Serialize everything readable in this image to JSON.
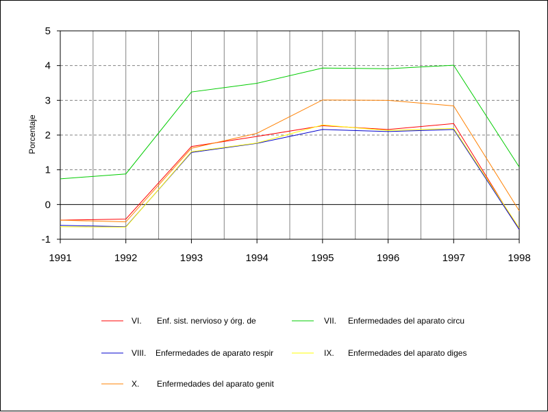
{
  "chart_data": {
    "type": "line",
    "title": "",
    "xlabel": "",
    "ylabel": "Porcentaje",
    "x": [
      "1991",
      "1992",
      "1993",
      "1994",
      "1995",
      "1996",
      "1997",
      "1998"
    ],
    "yticks": [
      "5",
      "4",
      "3",
      "2",
      "1",
      "0",
      "-1"
    ],
    "ylim": [
      -1,
      5
    ],
    "grid": true,
    "legend_position": "bottom",
    "series": [
      {
        "name": "Enf. sist. nervioso y órg. de",
        "code": "VI.",
        "color": "#ff0000",
        "values": [
          -0.45,
          -0.42,
          1.67,
          1.96,
          2.27,
          2.16,
          2.33,
          -0.72
        ]
      },
      {
        "name": "Enfermedades del aparato circu",
        "code": "VII.",
        "color": "#00cc00",
        "values": [
          0.74,
          0.88,
          3.24,
          3.49,
          3.93,
          3.91,
          4.01,
          1.08
        ]
      },
      {
        "name": "Enfermedades de aparato respir",
        "code": "VIII.",
        "color": "#0000cc",
        "values": [
          -0.6,
          -0.64,
          1.5,
          1.76,
          2.16,
          2.1,
          2.16,
          -0.72
        ]
      },
      {
        "name": "Enfermedades del aparato diges",
        "code": "IX.",
        "color": "#ffff00",
        "values": [
          -0.64,
          -0.65,
          1.52,
          1.77,
          2.29,
          2.13,
          2.19,
          -0.68
        ]
      },
      {
        "name": "Enfermedades del aparato genit",
        "code": "X.",
        "color": "#ff8000",
        "values": [
          -0.45,
          -0.5,
          1.62,
          2.05,
          3.01,
          3.0,
          2.84,
          -0.18
        ]
      }
    ]
  }
}
